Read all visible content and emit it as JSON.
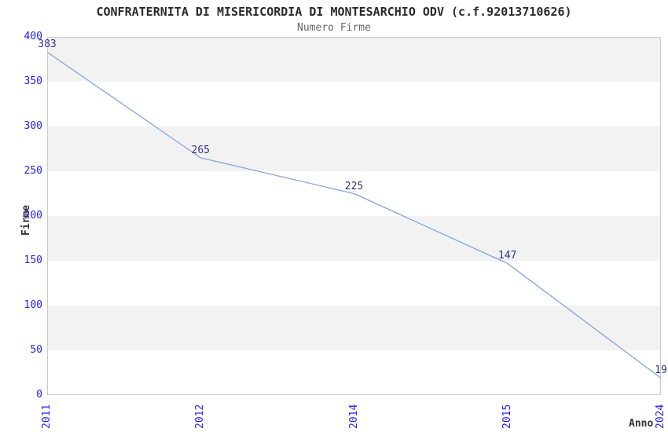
{
  "header": {
    "title": "CONFRATERNITA DI MISERICORDIA DI MONTESARCHIO ODV (c.f.92013710626)",
    "subtitle": "Numero Firme"
  },
  "chart_data": {
    "type": "line",
    "title": "CONFRATERNITA DI MISERICORDIA DI MONTESARCHIO ODV (c.f.92013710626)",
    "subtitle": "Numero Firme",
    "xlabel": "Anno",
    "ylabel": "Firme",
    "categories": [
      "2011",
      "2012",
      "2014",
      "2015",
      "2024"
    ],
    "values": [
      383,
      265,
      225,
      147,
      19
    ],
    "ylim": [
      0,
      400
    ],
    "yticks": [
      0,
      50,
      100,
      150,
      200,
      250,
      300,
      350,
      400
    ],
    "grid": "alternating-horizontal-bands",
    "legend": "none",
    "colors": {
      "line": "#7ea6db",
      "tick_label": "#2222ee",
      "data_label": "#333388",
      "band_gray": "#f2f2f2",
      "band_white": "#ffffff",
      "plot_border": "#cccccc",
      "title": "#2b2b2b",
      "subtitle": "#666666",
      "axis_title": "#333333"
    }
  }
}
